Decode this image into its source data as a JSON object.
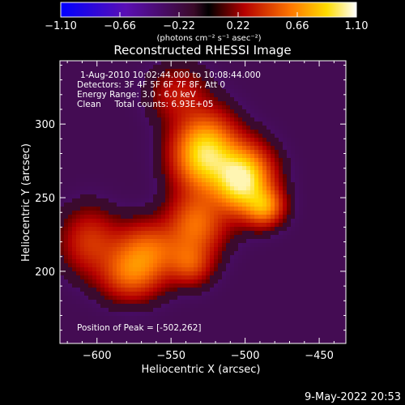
{
  "colorbar": {
    "tick_labels": [
      "-1.10",
      "-0.66",
      "-0.22",
      "0.22",
      "0.66",
      "1.10"
    ],
    "unit_label": "(photons cm⁻² s⁻¹ asec⁻²)",
    "range": [
      -1.1,
      1.1
    ]
  },
  "image": {
    "title": "Reconstructed RHESSI Image",
    "info_lines": [
      "1-Aug-2010 10:02:44.000 to 10:08:44.000",
      "Detectors: 3F 4F 5F 6F 7F 8F, Att 0",
      "Energy Range: 3.0 - 6.0 keV",
      "Clean     Total counts: 6.93E+05"
    ],
    "peak_label": "Position of Peak = [-502,262]"
  },
  "footer": {
    "date": "9-May-2022 20:53"
  },
  "colors": {
    "background": "#000000",
    "foreground": "#ffffff"
  },
  "chart_data": {
    "type": "heatmap",
    "title": "Reconstructed RHESSI Image",
    "xlabel": "Heliocentric X (arcsec)",
    "ylabel": "Heliocentric Y (arcsec)",
    "xlim": [
      -625,
      -432
    ],
    "ylim": [
      151,
      343
    ],
    "x_ticks": [
      -600,
      -550,
      -500,
      -450
    ],
    "y_ticks": [
      200,
      250,
      300
    ],
    "x_tick_labels": [
      "−600",
      "−550",
      "−500",
      "−450"
    ],
    "y_tick_labels": [
      "200",
      "250",
      "300"
    ],
    "peak": [
      -502,
      262
    ],
    "sources": [
      {
        "x": -502,
        "y": 262,
        "sx": 12,
        "sy": 14,
        "amp": 1.0
      },
      {
        "x": -527,
        "y": 280,
        "sx": 13,
        "sy": 16,
        "amp": 0.88
      },
      {
        "x": -487,
        "y": 244,
        "sx": 8,
        "sy": 8,
        "amp": 0.5
      },
      {
        "x": -533,
        "y": 232,
        "sx": 12,
        "sy": 14,
        "amp": 0.42
      },
      {
        "x": -565,
        "y": 214,
        "sx": 16,
        "sy": 12,
        "amp": 0.42
      },
      {
        "x": -577,
        "y": 198,
        "sx": 13,
        "sy": 11,
        "amp": 0.38
      },
      {
        "x": -537,
        "y": 205,
        "sx": 9,
        "sy": 9,
        "amp": 0.28
      },
      {
        "x": -605,
        "y": 220,
        "sx": 12,
        "sy": 14,
        "amp": 0.25
      },
      {
        "x": -545,
        "y": 320,
        "sx": 12,
        "sy": 12,
        "amp": 0.18
      }
    ],
    "min_value": -1.1,
    "max_value": 1.1
  }
}
